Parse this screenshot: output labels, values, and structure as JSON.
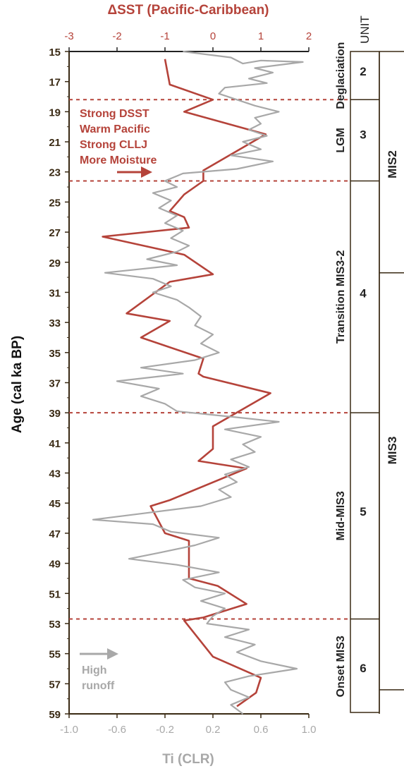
{
  "chart_data": {
    "type": "line",
    "top_axis": {
      "label": "ΔSST (Pacific-Caribbean)",
      "range": [
        -3,
        2
      ],
      "ticks": [
        "-3",
        "-2",
        "-1",
        "0",
        "1",
        "2"
      ],
      "color": "#b5433a"
    },
    "bottom_axis": {
      "label": "Ti (CLR)",
      "range": [
        -1.0,
        1.0
      ],
      "ticks": [
        "-1.0",
        "-0.6",
        "-0.2",
        "0.2",
        "0.6",
        "1.0"
      ],
      "color": "#a8a8a8"
    },
    "y_axis": {
      "label": "Age (cal ka BP)",
      "range": [
        15,
        59
      ],
      "ticks": [
        "15",
        "17",
        "19",
        "21",
        "23",
        "25",
        "27",
        "29",
        "31",
        "33",
        "35",
        "37",
        "39",
        "41",
        "43",
        "45",
        "47",
        "49",
        "51",
        "53",
        "55",
        "57",
        "59"
      ],
      "inverted": true
    },
    "series": [
      {
        "name": "ΔSST (Pacific-Caribbean)",
        "axis": "top",
        "color": "#b5433a",
        "points": [
          [
            -1.0,
            15.5
          ],
          [
            -0.9,
            17.2
          ],
          [
            0.0,
            18.2
          ],
          [
            -0.6,
            19.0
          ],
          [
            1.1,
            20.5
          ],
          [
            -0.2,
            22.9
          ],
          [
            -0.2,
            23.6
          ],
          [
            -0.6,
            24.5
          ],
          [
            -0.9,
            25.6
          ],
          [
            -0.6,
            26.0
          ],
          [
            -0.5,
            26.7
          ],
          [
            -2.3,
            27.3
          ],
          [
            -0.6,
            28.5
          ],
          [
            0.0,
            29.8
          ],
          [
            -0.9,
            30.3
          ],
          [
            -1.8,
            32.4
          ],
          [
            -0.9,
            32.9
          ],
          [
            -1.5,
            34.0
          ],
          [
            -0.2,
            35.4
          ],
          [
            -0.3,
            36.4
          ],
          [
            -0.2,
            36.6
          ],
          [
            1.2,
            37.7
          ],
          [
            0.0,
            39.9
          ],
          [
            0.0,
            41.4
          ],
          [
            -0.3,
            42.2
          ],
          [
            0.7,
            42.7
          ],
          [
            -0.9,
            44.8
          ],
          [
            -1.3,
            45.2
          ],
          [
            -1.0,
            47.0
          ],
          [
            -0.5,
            47.5
          ],
          [
            -0.5,
            50.0
          ],
          [
            0.1,
            50.5
          ],
          [
            0.7,
            51.7
          ],
          [
            -0.2,
            52.6
          ],
          [
            -0.6,
            52.8
          ],
          [
            -0.3,
            54.0
          ],
          [
            0.0,
            55.2
          ],
          [
            1.0,
            56.6
          ],
          [
            0.9,
            57.6
          ],
          [
            0.5,
            58.5
          ]
        ]
      },
      {
        "name": "Ti (CLR)",
        "axis": "bottom",
        "color": "#a8a8a8",
        "points": [
          [
            -0.05,
            15.0
          ],
          [
            0.35,
            15.4
          ],
          [
            0.45,
            15.8
          ],
          [
            0.6,
            15.6
          ],
          [
            0.95,
            15.7
          ],
          [
            0.55,
            16.1
          ],
          [
            0.7,
            16.4
          ],
          [
            0.5,
            16.8
          ],
          [
            0.65,
            17.1
          ],
          [
            0.3,
            17.4
          ],
          [
            0.25,
            17.8
          ],
          [
            0.4,
            18.2
          ],
          [
            0.55,
            18.6
          ],
          [
            0.75,
            19.0
          ],
          [
            0.55,
            19.4
          ],
          [
            0.6,
            19.8
          ],
          [
            0.5,
            20.2
          ],
          [
            0.65,
            20.6
          ],
          [
            0.45,
            21.0
          ],
          [
            0.6,
            21.5
          ],
          [
            0.35,
            21.9
          ],
          [
            0.7,
            22.3
          ],
          [
            0.4,
            22.8
          ],
          [
            -0.05,
            23.1
          ],
          [
            -0.2,
            23.6
          ],
          [
            -0.1,
            24.0
          ],
          [
            -0.3,
            24.4
          ],
          [
            -0.15,
            24.9
          ],
          [
            -0.25,
            25.4
          ],
          [
            -0.1,
            25.9
          ],
          [
            -0.2,
            26.4
          ],
          [
            -0.05,
            26.9
          ],
          [
            -0.15,
            27.4
          ],
          [
            0.0,
            27.9
          ],
          [
            -0.1,
            28.3
          ],
          [
            -0.35,
            28.8
          ],
          [
            -0.1,
            29.2
          ],
          [
            -0.7,
            29.7
          ],
          [
            -0.3,
            30.1
          ],
          [
            -0.15,
            30.6
          ],
          [
            -0.3,
            31.0
          ],
          [
            -0.1,
            31.5
          ],
          [
            0.0,
            32.0
          ],
          [
            0.1,
            32.6
          ],
          [
            0.05,
            33.2
          ],
          [
            0.2,
            33.8
          ],
          [
            0.1,
            34.4
          ],
          [
            0.25,
            35.0
          ],
          [
            0.05,
            35.5
          ],
          [
            -0.4,
            36.0
          ],
          [
            -0.05,
            36.4
          ],
          [
            -0.6,
            36.9
          ],
          [
            -0.25,
            37.4
          ],
          [
            -0.4,
            37.9
          ],
          [
            -0.2,
            38.4
          ],
          [
            -0.1,
            38.9
          ],
          [
            0.4,
            39.3
          ],
          [
            0.75,
            39.6
          ],
          [
            0.3,
            40.1
          ],
          [
            0.6,
            40.6
          ],
          [
            0.45,
            41.1
          ],
          [
            0.55,
            41.6
          ],
          [
            0.35,
            42.1
          ],
          [
            0.5,
            42.6
          ],
          [
            0.3,
            43.1
          ],
          [
            0.4,
            43.6
          ],
          [
            0.25,
            44.1
          ],
          [
            0.35,
            44.6
          ],
          [
            0.1,
            45.2
          ],
          [
            -0.4,
            45.7
          ],
          [
            -0.8,
            46.1
          ],
          [
            -0.3,
            46.4
          ],
          [
            -0.15,
            46.9
          ],
          [
            0.25,
            47.3
          ],
          [
            0.05,
            47.8
          ],
          [
            -0.25,
            48.3
          ],
          [
            -0.5,
            48.7
          ],
          [
            -0.1,
            49.1
          ],
          [
            0.25,
            49.6
          ],
          [
            -0.05,
            50.1
          ],
          [
            0.05,
            50.6
          ],
          [
            0.3,
            51.0
          ],
          [
            0.1,
            51.5
          ],
          [
            0.3,
            52.0
          ],
          [
            0.2,
            52.5
          ],
          [
            0.15,
            53.0
          ],
          [
            0.5,
            53.4
          ],
          [
            0.3,
            53.9
          ],
          [
            0.55,
            54.4
          ],
          [
            0.4,
            54.9
          ],
          [
            0.6,
            55.5
          ],
          [
            0.9,
            56.0
          ],
          [
            0.5,
            56.5
          ],
          [
            0.3,
            56.9
          ],
          [
            0.35,
            57.4
          ],
          [
            0.5,
            57.9
          ],
          [
            0.35,
            58.4
          ],
          [
            0.45,
            59.0
          ]
        ]
      }
    ],
    "boundaries": [
      18.2,
      23.6,
      39.0,
      52.7
    ],
    "units": [
      {
        "unit": "2",
        "name": "Deglaciation",
        "from": 15,
        "to": 18.2
      },
      {
        "unit": "3",
        "name": "LGM",
        "from": 18.2,
        "to": 23.6
      },
      {
        "unit": "4",
        "name": "Transition MIS3-2",
        "from": 23.6,
        "to": 39.0
      },
      {
        "unit": "5",
        "name": "Mid-MIS3",
        "from": 39.0,
        "to": 52.7
      },
      {
        "unit": "6",
        "name": "Onset MIS3",
        "from": 52.7,
        "to": 59
      }
    ],
    "mis": [
      {
        "name": "MIS2",
        "from": 15,
        "to": 29.7
      },
      {
        "name": "MIS3",
        "from": 29.7,
        "to": 57.4
      }
    ],
    "annotations": {
      "dsst_text": [
        "Strong DSST",
        "Warm Pacific",
        "Strong CLLJ",
        "More Moisture"
      ],
      "runoff_text": [
        "High",
        "runoff"
      ],
      "unit_header": "UNIT"
    }
  }
}
